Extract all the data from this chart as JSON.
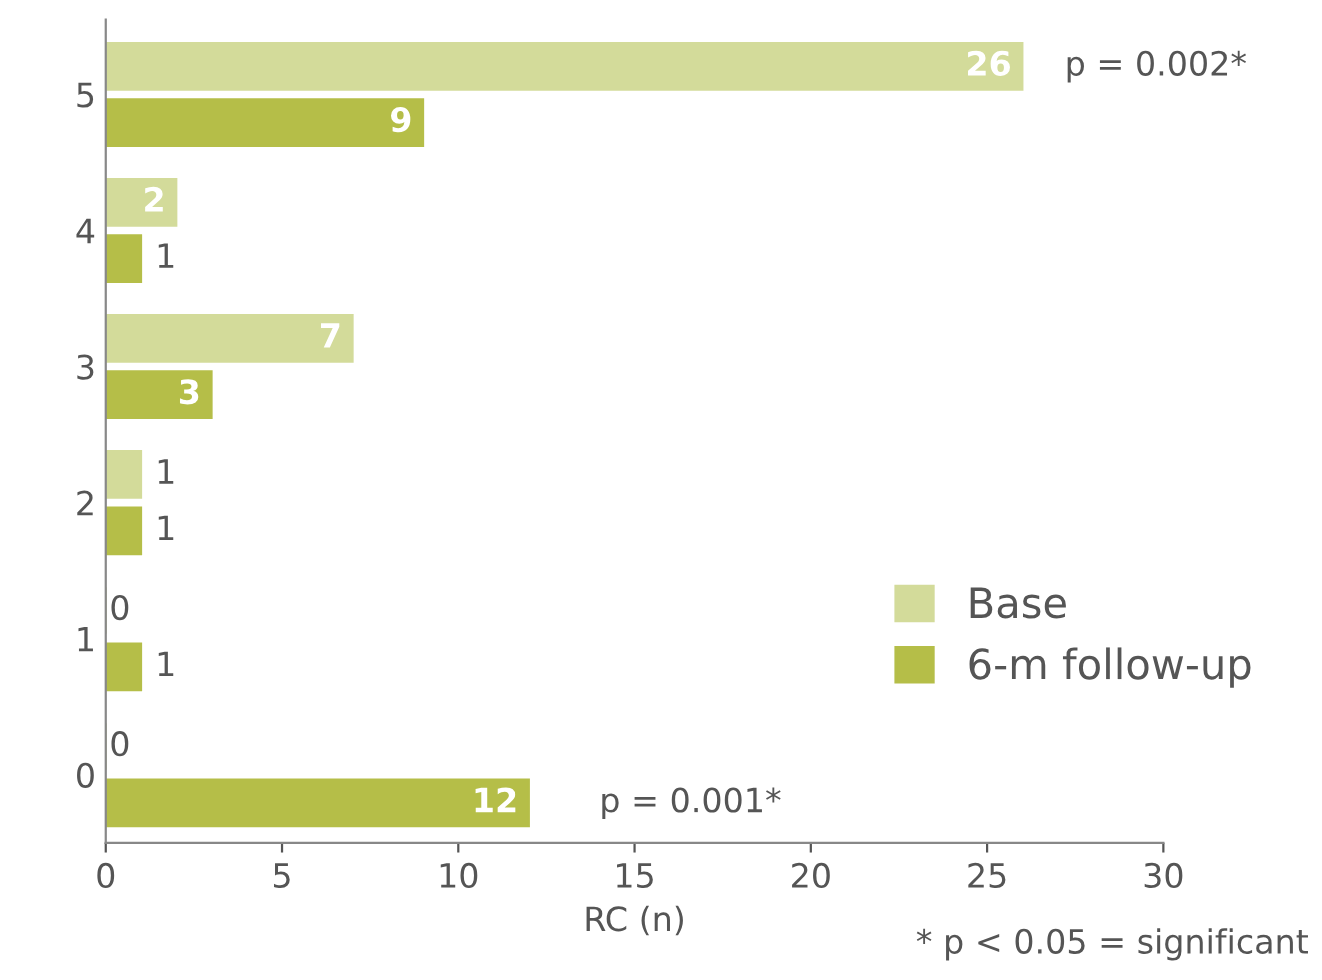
{
  "chart_data": {
    "type": "bar",
    "orientation": "horizontal",
    "xlabel": "RC (n)",
    "categories": [
      "5",
      "4",
      "3",
      "2",
      "1",
      "0"
    ],
    "series": [
      {
        "name": "Base",
        "color": "#d3db9a",
        "values": [
          26,
          2,
          7,
          1,
          0,
          0
        ]
      },
      {
        "name": "6-m follow-up",
        "color": "#b5be48",
        "values": [
          9,
          1,
          3,
          1,
          1,
          12
        ]
      }
    ],
    "xlim": [
      0,
      30
    ],
    "xticks": [
      0,
      5,
      10,
      15,
      20,
      25,
      30
    ],
    "grid": false,
    "legend": "right",
    "data_labels": true,
    "annotations": [
      {
        "text": "p = 0.002*",
        "x": 26,
        "y": "5"
      },
      {
        "text": "p = 0.001*",
        "x": 12,
        "y": "0"
      },
      "* p < 0.05 = significant"
    ]
  }
}
